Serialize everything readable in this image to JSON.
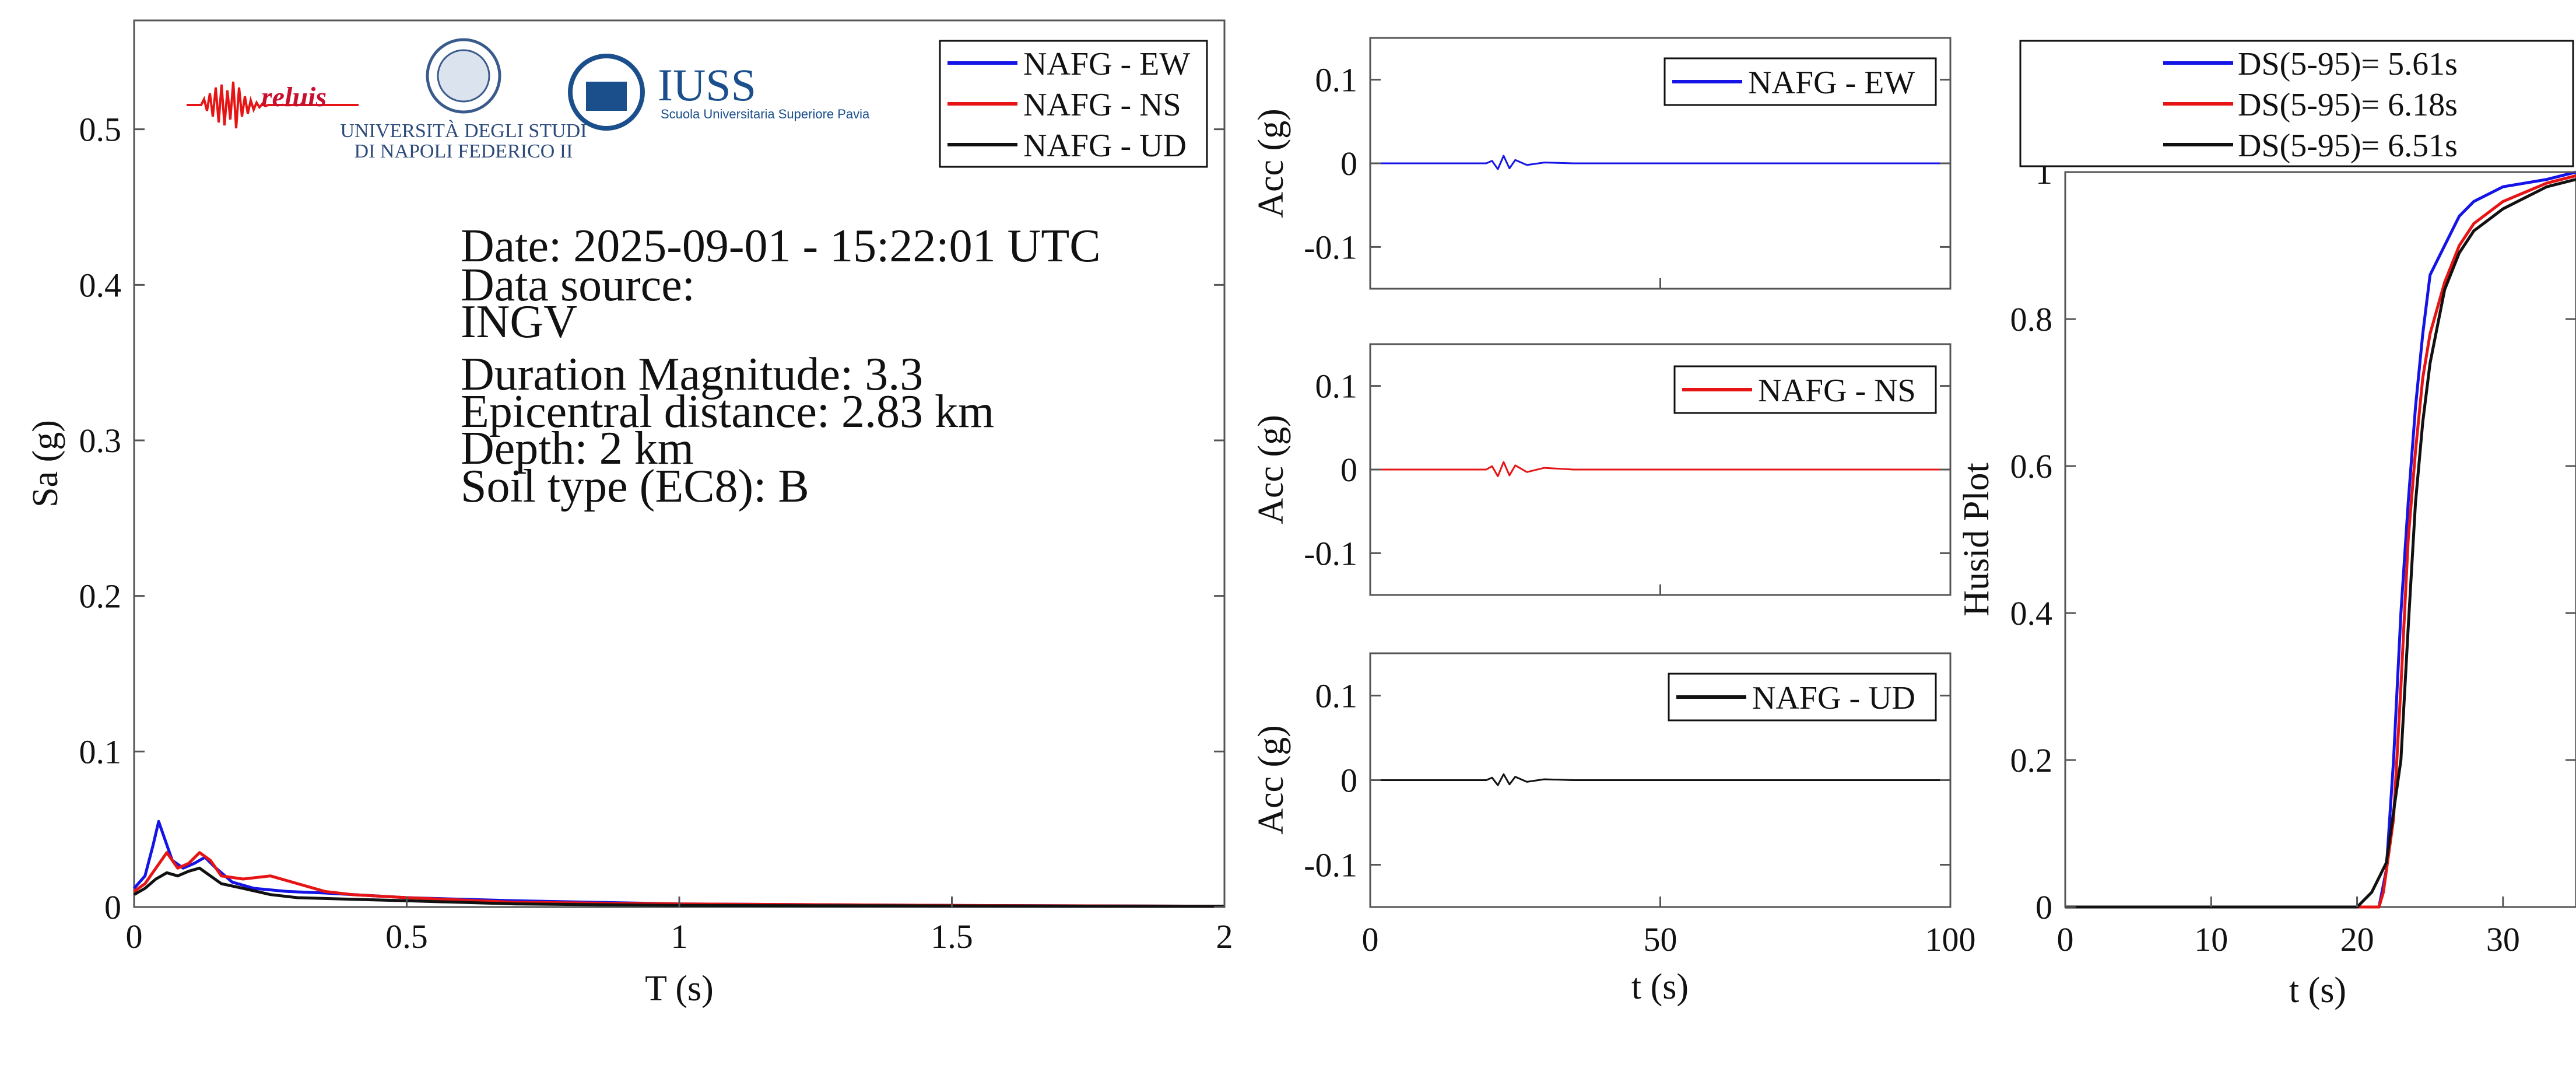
{
  "logos": {
    "reluis": "reluis",
    "unina_line1": "UNIVERSITÀ DEGLI STUDI",
    "unina_line2": "DI NAPOLI FEDERICO II",
    "iuss_title": "IUSS",
    "iuss_subtitle": "Scuola Universitaria Superiore Pavia"
  },
  "info": {
    "date": "Date: 2025-09-01 - 15:22:01 UTC",
    "source_label": "Data source:",
    "source": "INGV",
    "magnitude": "Duration Magnitude: 3.3",
    "distance": "Epicentral distance: 2.83 km",
    "depth": "Depth: 2 km",
    "soil": "Soil type (EC8): B"
  },
  "colors": {
    "ew": "#1414e6",
    "ns": "#e61414",
    "ud": "#111111",
    "axis": "#555555"
  },
  "chart_data": [
    {
      "type": "line",
      "xlabel": "T (s)",
      "ylabel": "Sa (g)",
      "xlim": [
        0,
        2
      ],
      "ylim": [
        0,
        0.57
      ],
      "xticks": [
        "0",
        "0.5",
        "1",
        "1.5",
        "2"
      ],
      "yticks": [
        "0",
        "0.1",
        "0.2",
        "0.3",
        "0.4",
        "0.5"
      ],
      "legend": "top-right",
      "series": [
        {
          "name": "NAFG - EW",
          "x": [
            0,
            0.02,
            0.035,
            0.045,
            0.055,
            0.07,
            0.09,
            0.11,
            0.13,
            0.15,
            0.18,
            0.22,
            0.28,
            0.35,
            0.5,
            0.7,
            1.0,
            1.5,
            2.0
          ],
          "y": [
            0.012,
            0.02,
            0.04,
            0.055,
            0.045,
            0.03,
            0.025,
            0.028,
            0.032,
            0.025,
            0.016,
            0.012,
            0.01,
            0.009,
            0.006,
            0.004,
            0.002,
            0.001,
            0.0005
          ]
        },
        {
          "name": "NAFG - NS",
          "x": [
            0,
            0.02,
            0.04,
            0.06,
            0.08,
            0.1,
            0.12,
            0.14,
            0.16,
            0.2,
            0.25,
            0.3,
            0.35,
            0.4,
            0.5,
            0.7,
            1.0,
            1.5,
            2.0
          ],
          "y": [
            0.01,
            0.015,
            0.025,
            0.035,
            0.025,
            0.028,
            0.035,
            0.03,
            0.02,
            0.018,
            0.02,
            0.015,
            0.01,
            0.008,
            0.006,
            0.003,
            0.002,
            0.001,
            0.0005
          ]
        },
        {
          "name": "NAFG - UD",
          "x": [
            0,
            0.02,
            0.04,
            0.06,
            0.08,
            0.1,
            0.12,
            0.14,
            0.16,
            0.2,
            0.25,
            0.3,
            0.4,
            0.5,
            0.7,
            1.0,
            1.5,
            2.0
          ],
          "y": [
            0.008,
            0.012,
            0.018,
            0.022,
            0.02,
            0.023,
            0.025,
            0.02,
            0.015,
            0.012,
            0.008,
            0.006,
            0.005,
            0.004,
            0.002,
            0.001,
            0.0007,
            0.0004
          ]
        }
      ]
    },
    {
      "type": "line",
      "ylabel": "Acc (g)",
      "xlim": [
        0,
        100
      ],
      "ylim": [
        -0.15,
        0.15
      ],
      "yticks": [
        "0.1",
        "0",
        "-0.1"
      ],
      "legend": "top-right",
      "series": [
        {
          "name": "NAFG - EW",
          "x": [
            0,
            20,
            21,
            22,
            23,
            24,
            25,
            27,
            30,
            35,
            100
          ],
          "y": [
            0,
            0,
            0.003,
            -0.007,
            0.009,
            -0.006,
            0.004,
            -0.002,
            0.001,
            0,
            0
          ]
        }
      ]
    },
    {
      "type": "line",
      "ylabel": "Acc (g)",
      "xlim": [
        0,
        100
      ],
      "ylim": [
        -0.15,
        0.15
      ],
      "yticks": [
        "0.1",
        "0",
        "-0.1"
      ],
      "legend": "top-right",
      "series": [
        {
          "name": "NAFG - NS",
          "x": [
            0,
            20,
            21,
            22,
            23,
            24,
            25,
            27,
            30,
            35,
            100
          ],
          "y": [
            0,
            0,
            0.004,
            -0.008,
            0.009,
            -0.007,
            0.005,
            -0.003,
            0.002,
            0,
            0
          ]
        }
      ]
    },
    {
      "type": "line",
      "xlabel": "t (s)",
      "ylabel": "Acc (g)",
      "xlim": [
        0,
        100
      ],
      "ylim": [
        -0.15,
        0.15
      ],
      "xticks": [
        "0",
        "50",
        "100"
      ],
      "yticks": [
        "0.1",
        "0",
        "-0.1"
      ],
      "legend": "top-right",
      "series": [
        {
          "name": "NAFG - UD",
          "x": [
            0,
            20,
            21,
            22,
            23,
            24,
            25,
            27,
            30,
            35,
            100
          ],
          "y": [
            0,
            0,
            0.003,
            -0.006,
            0.007,
            -0.005,
            0.004,
            -0.002,
            0.001,
            0,
            0
          ]
        }
      ]
    },
    {
      "type": "line",
      "xlabel": "t (s)",
      "ylabel": "Husid Plot",
      "xlim": [
        0,
        35
      ],
      "ylim": [
        0,
        1
      ],
      "xticks": [
        "0",
        "10",
        "20",
        "30"
      ],
      "yticks": [
        "0",
        "0.2",
        "0.4",
        "0.6",
        "0.8",
        "1"
      ],
      "legend": "top",
      "series": [
        {
          "name": "DS(5-95)= 5.61s",
          "x": [
            0,
            21.5,
            22,
            22.5,
            23,
            23.5,
            24,
            24.5,
            25,
            26,
            27,
            28,
            30,
            33,
            35
          ],
          "y": [
            0,
            0,
            0.05,
            0.2,
            0.4,
            0.55,
            0.68,
            0.78,
            0.86,
            0.9,
            0.94,
            0.96,
            0.98,
            0.99,
            1.0
          ]
        },
        {
          "name": "DS(5-95)= 6.18s",
          "x": [
            0,
            21.5,
            21.8,
            22.5,
            23,
            23.5,
            24,
            24.5,
            25,
            26,
            27,
            28,
            30,
            33,
            35
          ],
          "y": [
            0,
            0,
            0.02,
            0.12,
            0.3,
            0.5,
            0.62,
            0.72,
            0.78,
            0.85,
            0.9,
            0.93,
            0.96,
            0.985,
            0.995
          ]
        },
        {
          "name": "DS(5-95)= 6.51s",
          "x": [
            0,
            20,
            21,
            22,
            23,
            23.5,
            24,
            24.5,
            25,
            26,
            27,
            28,
            30,
            33,
            35
          ],
          "y": [
            0,
            0,
            0.02,
            0.06,
            0.2,
            0.38,
            0.55,
            0.66,
            0.74,
            0.84,
            0.89,
            0.92,
            0.95,
            0.98,
            0.99
          ]
        }
      ]
    }
  ]
}
